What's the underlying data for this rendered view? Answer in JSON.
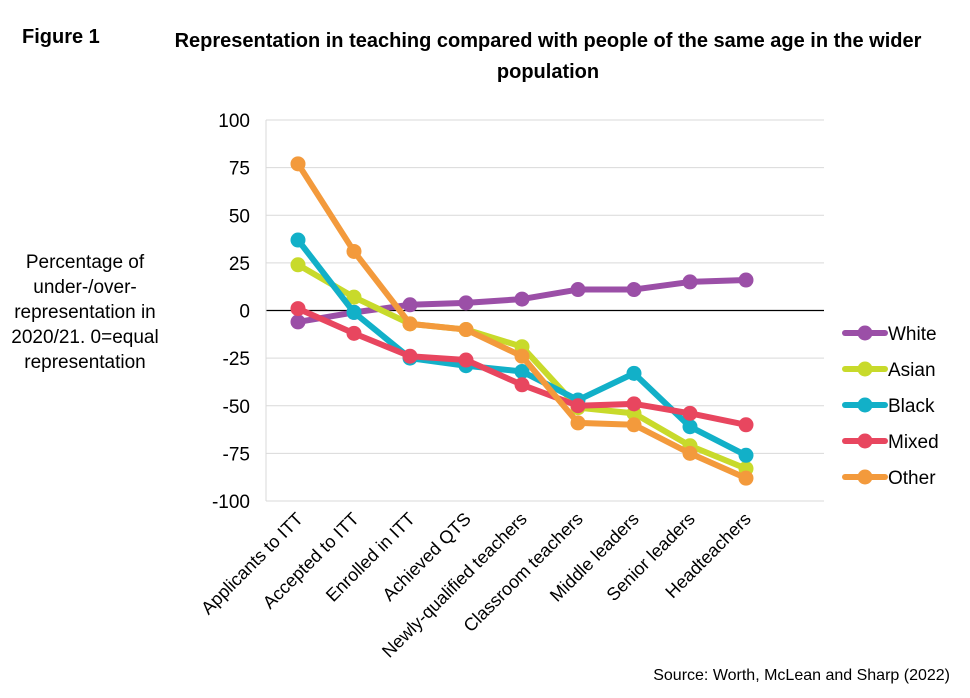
{
  "figure_label": "Figure 1",
  "title": "Representation in teaching compared with people of the same age in the wider population",
  "ylabel": "Percentage of under-/over-representation in 2020/21. 0=equal representation",
  "source": "Source: Worth, McLean and Sharp (2022)",
  "chart_data": {
    "type": "line",
    "title": "Representation in teaching compared with people of the same age in the wider population",
    "xlabel": "",
    "ylabel": "Percentage of under-/over-representation in 2020/21. 0=equal representation",
    "ylim": [
      -100,
      100
    ],
    "yticks": [
      100,
      75,
      50,
      25,
      0,
      -25,
      -50,
      -75,
      -100
    ],
    "grid": true,
    "legend": "right",
    "categories": [
      "Applicants to ITT",
      "Accepted to ITT",
      "Enrolled in ITT",
      "Achieved QTS",
      "Newly-qualified teachers",
      "Classroom teachers",
      "Middle leaders",
      "Senior leaders",
      "Headteachers"
    ],
    "series": [
      {
        "name": "White",
        "color": "#9b4fa7",
        "values": [
          -6,
          -1,
          3,
          4,
          6,
          11,
          11,
          15,
          16
        ]
      },
      {
        "name": "Asian",
        "color": "#c8da2b",
        "values": [
          24,
          7,
          -7,
          -10,
          -19,
          -51,
          -54,
          -71,
          -83
        ]
      },
      {
        "name": "Black",
        "color": "#12b0c8",
        "values": [
          37,
          -1,
          -25,
          -29,
          -32,
          -47,
          -33,
          -61,
          -76
        ]
      },
      {
        "name": "Mixed",
        "color": "#e8465f",
        "values": [
          1,
          -12,
          -24,
          -26,
          -39,
          -50,
          -49,
          -54,
          -60
        ]
      },
      {
        "name": "Other",
        "color": "#f39a3c",
        "values": [
          77,
          31,
          -7,
          -10,
          -24,
          -59,
          -60,
          -75,
          -88
        ]
      }
    ]
  }
}
